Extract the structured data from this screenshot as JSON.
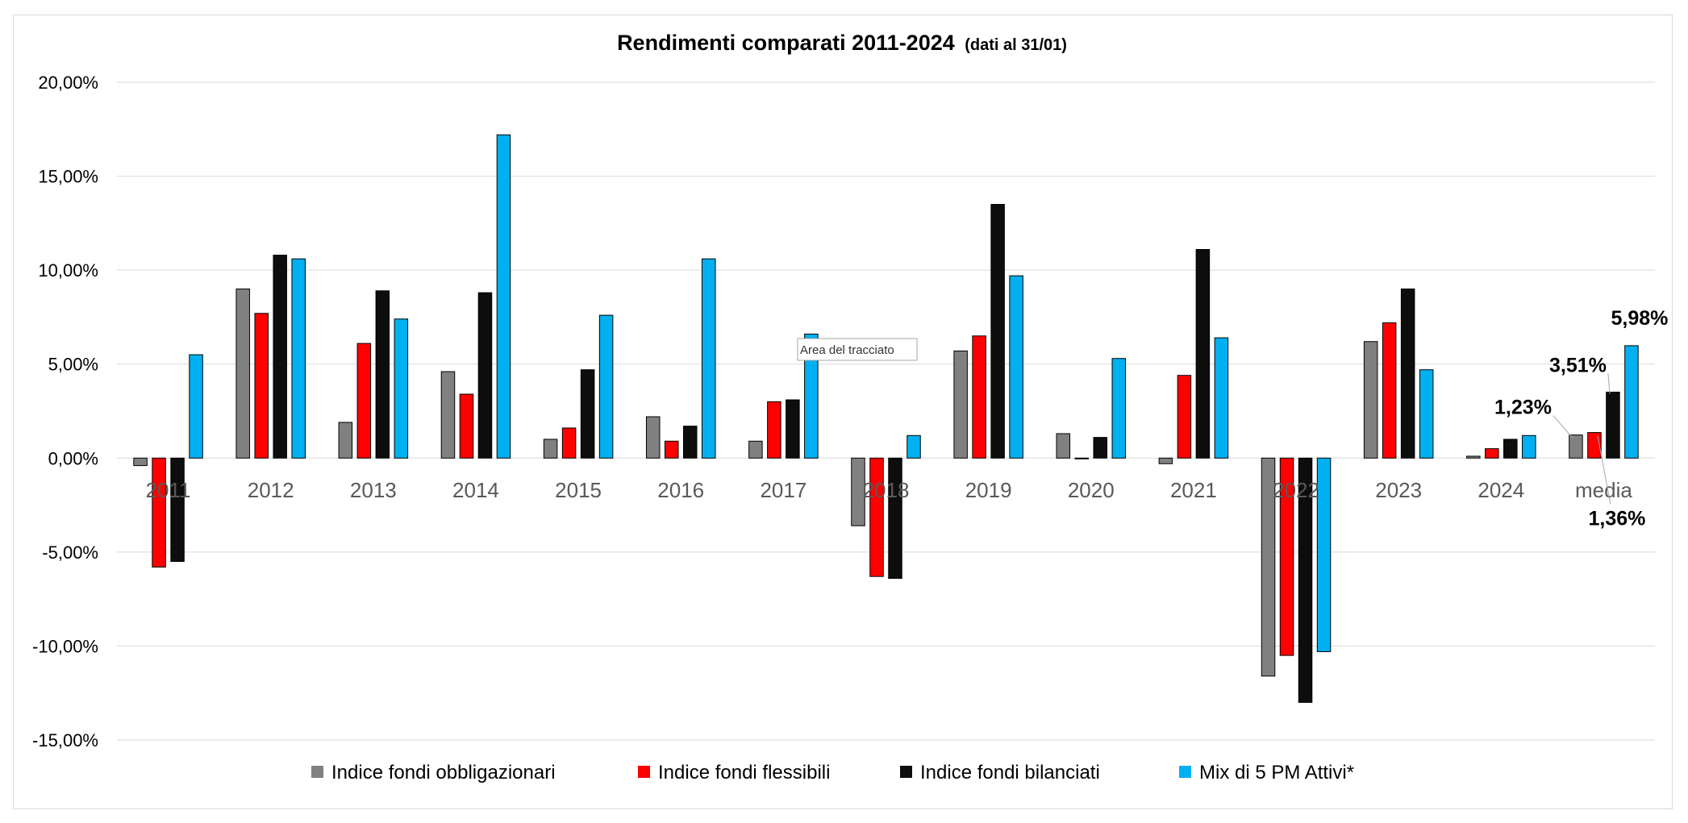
{
  "tooltip": "Area del tracciato",
  "colors": {
    "Indice fondi obbligazionari": "#808080",
    "Indice fondi flessibili": "#ff0000",
    "Indice fondi bilanciati": "#0d0d0d",
    "Mix di 5 PM Attivi*": "#00b0f0",
    "grid": "#d9d9d9",
    "bar_outline": "#000000"
  },
  "chart_data": {
    "type": "bar",
    "title": "Rendimenti comparati 2011-2024",
    "subtitle": "(dati al 31/01)",
    "xlabel": "",
    "ylabel": "",
    "ylim": [
      -0.15,
      0.2
    ],
    "yticks": [
      0.2,
      0.15,
      0.1,
      0.05,
      0.0,
      -0.05,
      -0.1,
      -0.15
    ],
    "ytick_labels": [
      "20,00%",
      "15,00%",
      "10,00%",
      "5,00%",
      "0,00%",
      "-5,00%",
      "-10,00%",
      "-15,00%"
    ],
    "grid": true,
    "legend_position": "bottom",
    "categories": [
      "2011",
      "2012",
      "2013",
      "2014",
      "2015",
      "2016",
      "2017",
      "2018",
      "2019",
      "2020",
      "2021",
      "2022",
      "2023",
      "2024",
      "media"
    ],
    "series": [
      {
        "name": "Indice fondi obbligazionari",
        "values": [
          -0.004,
          0.09,
          0.019,
          0.046,
          0.01,
          0.022,
          0.009,
          -0.036,
          0.057,
          0.013,
          -0.003,
          -0.116,
          0.062,
          0.001,
          0.0123
        ]
      },
      {
        "name": "Indice fondi flessibili",
        "values": [
          -0.058,
          0.077,
          0.061,
          0.034,
          0.016,
          0.009,
          0.03,
          -0.063,
          0.065,
          0.0,
          0.044,
          -0.105,
          0.072,
          0.005,
          0.0136
        ]
      },
      {
        "name": "Indice fondi bilanciati",
        "values": [
          -0.055,
          0.108,
          0.089,
          0.088,
          0.047,
          0.017,
          0.031,
          -0.064,
          0.135,
          0.011,
          0.111,
          -0.13,
          0.09,
          0.01,
          0.0351
        ]
      },
      {
        "name": "Mix di 5 PM Attivi*",
        "values": [
          0.055,
          0.106,
          0.074,
          0.172,
          0.076,
          0.106,
          0.066,
          0.012,
          0.097,
          0.053,
          0.064,
          -0.103,
          0.047,
          0.012,
          0.0598
        ]
      }
    ],
    "data_labels": [
      {
        "category": "media",
        "series": "Indice fondi obbligazionari",
        "text": "1,23%"
      },
      {
        "category": "media",
        "series": "Indice fondi flessibili",
        "text": "1,36%"
      },
      {
        "category": "media",
        "series": "Indice fondi bilanciati",
        "text": "3,51%"
      },
      {
        "category": "media",
        "series": "Mix di 5 PM Attivi*",
        "text": "5,98%"
      }
    ]
  }
}
